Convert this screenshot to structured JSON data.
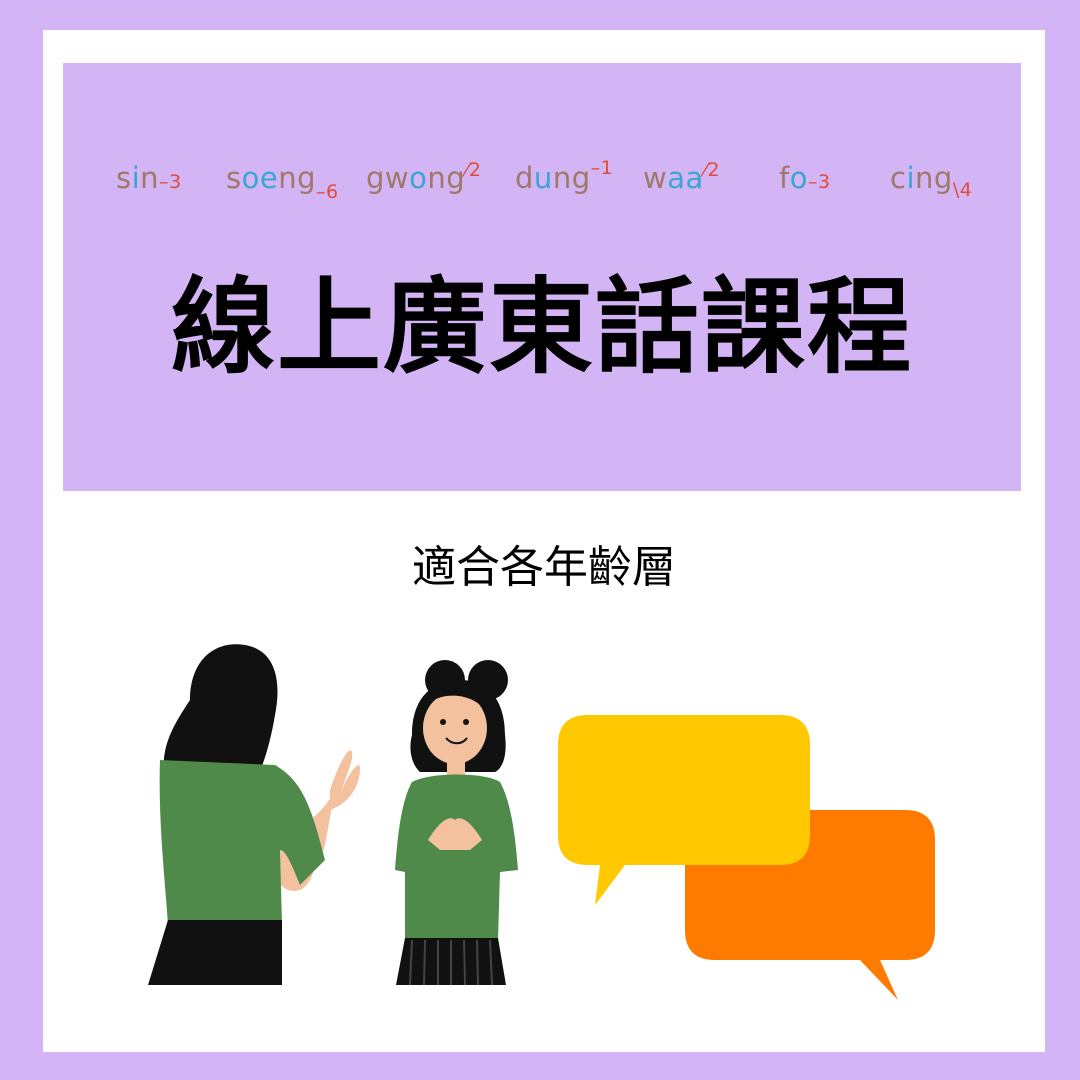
{
  "jyutping": [
    {
      "onset": "s",
      "vowel": "i",
      "coda": "n",
      "tone": "3"
    },
    {
      "onset": "s",
      "vowel": "oe",
      "coda": "ng",
      "tone": "6"
    },
    {
      "onset": "gw",
      "vowel": "o",
      "coda": "ng",
      "tone": "2"
    },
    {
      "onset": "d",
      "vowel": "u",
      "coda": "ng",
      "tone": "1"
    },
    {
      "onset": "w",
      "vowel": "aa",
      "coda": "",
      "tone": "2"
    },
    {
      "onset": "f",
      "vowel": "o",
      "coda": "",
      "tone": "3"
    },
    {
      "onset": "c",
      "vowel": "i",
      "coda": "ng",
      "tone": "4"
    }
  ],
  "title": "線上廣東話課程",
  "subtitle": "適合各年齡層",
  "colors": {
    "background": "#d3b5f5",
    "card": "#ffffff",
    "tone_mark": "#e24b3b",
    "vowel": "#3aa6cf",
    "consonant": "#a07868",
    "shirt": "#4f8a4b",
    "bubble_yellow": "#ffc800",
    "bubble_orange": "#ff7b00"
  }
}
